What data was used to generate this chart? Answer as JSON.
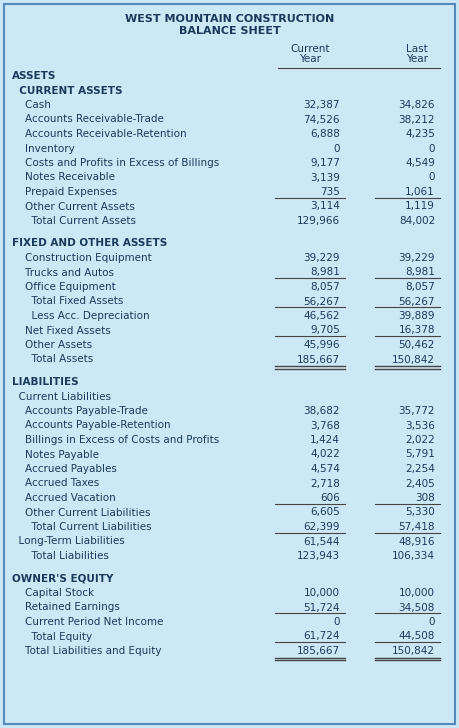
{
  "title1": "WEST MOUNTAIN CONSTRUCTION",
  "title2": "BALANCE SHEET",
  "bg_color": "#cce8f4",
  "border_color": "#5588bb",
  "text_color": "#1a3a5c",
  "line_color": "#444444",
  "fig_width": 4.59,
  "fig_height": 7.28,
  "dpi": 100,
  "rows": [
    {
      "label": "ASSETS",
      "cur": "",
      "last": "",
      "indent": 0,
      "bold": true,
      "ul_before": false,
      "dbl_after": false,
      "gap_before": false
    },
    {
      "label": "  CURRENT ASSETS",
      "cur": "",
      "last": "",
      "indent": 1,
      "bold": true,
      "ul_before": false,
      "dbl_after": false,
      "gap_before": false
    },
    {
      "label": "    Cash",
      "cur": "32,387",
      "last": "34,826",
      "indent": 2,
      "bold": false,
      "ul_before": false,
      "dbl_after": false,
      "gap_before": false
    },
    {
      "label": "    Accounts Receivable-Trade",
      "cur": "74,526",
      "last": "38,212",
      "indent": 2,
      "bold": false,
      "ul_before": false,
      "dbl_after": false,
      "gap_before": false
    },
    {
      "label": "    Accounts Receivable-Retention",
      "cur": "6,888",
      "last": "4,235",
      "indent": 2,
      "bold": false,
      "ul_before": false,
      "dbl_after": false,
      "gap_before": false
    },
    {
      "label": "    Inventory",
      "cur": "0",
      "last": "0",
      "indent": 2,
      "bold": false,
      "ul_before": false,
      "dbl_after": false,
      "gap_before": false
    },
    {
      "label": "    Costs and Profits in Excess of Billings",
      "cur": "9,177",
      "last": "4,549",
      "indent": 2,
      "bold": false,
      "ul_before": false,
      "dbl_after": false,
      "gap_before": false
    },
    {
      "label": "    Notes Receivable",
      "cur": "3,139",
      "last": "0",
      "indent": 2,
      "bold": false,
      "ul_before": false,
      "dbl_after": false,
      "gap_before": false
    },
    {
      "label": "    Prepaid Expenses",
      "cur": "735",
      "last": "1,061",
      "indent": 2,
      "bold": false,
      "ul_before": false,
      "dbl_after": false,
      "gap_before": false
    },
    {
      "label": "    Other Current Assets",
      "cur": "3,114",
      "last": "1,119",
      "indent": 2,
      "bold": false,
      "ul_before": true,
      "dbl_after": false,
      "gap_before": false
    },
    {
      "label": "      Total Current Assets",
      "cur": "129,966",
      "last": "84,002",
      "indent": 3,
      "bold": false,
      "ul_before": false,
      "dbl_after": false,
      "gap_before": false
    },
    {
      "label": "FIXED AND OTHER ASSETS",
      "cur": "",
      "last": "",
      "indent": 0,
      "bold": true,
      "ul_before": false,
      "dbl_after": false,
      "gap_before": true
    },
    {
      "label": "    Construction Equipment",
      "cur": "39,229",
      "last": "39,229",
      "indent": 2,
      "bold": false,
      "ul_before": false,
      "dbl_after": false,
      "gap_before": false
    },
    {
      "label": "    Trucks and Autos",
      "cur": "8,981",
      "last": "8,981",
      "indent": 2,
      "bold": false,
      "ul_before": false,
      "dbl_after": false,
      "gap_before": false
    },
    {
      "label": "    Office Equipment",
      "cur": "8,057",
      "last": "8,057",
      "indent": 2,
      "bold": false,
      "ul_before": true,
      "dbl_after": false,
      "gap_before": false
    },
    {
      "label": "      Total Fixed Assets",
      "cur": "56,267",
      "last": "56,267",
      "indent": 3,
      "bold": false,
      "ul_before": false,
      "dbl_after": false,
      "gap_before": false
    },
    {
      "label": "      Less Acc. Depreciation",
      "cur": "46,562",
      "last": "39,889",
      "indent": 3,
      "bold": false,
      "ul_before": true,
      "dbl_after": false,
      "gap_before": false
    },
    {
      "label": "    Net Fixed Assets",
      "cur": "9,705",
      "last": "16,378",
      "indent": 2,
      "bold": false,
      "ul_before": false,
      "dbl_after": false,
      "gap_before": false
    },
    {
      "label": "    Other Assets",
      "cur": "45,996",
      "last": "50,462",
      "indent": 2,
      "bold": false,
      "ul_before": true,
      "dbl_after": false,
      "gap_before": false
    },
    {
      "label": "      Total Assets",
      "cur": "185,667",
      "last": "150,842",
      "indent": 3,
      "bold": false,
      "ul_before": false,
      "dbl_after": true,
      "gap_before": false
    },
    {
      "label": "LIABILITIES",
      "cur": "",
      "last": "",
      "indent": 0,
      "bold": true,
      "ul_before": false,
      "dbl_after": false,
      "gap_before": true
    },
    {
      "label": "  Current Liabilities",
      "cur": "",
      "last": "",
      "indent": 1,
      "bold": false,
      "ul_before": false,
      "dbl_after": false,
      "gap_before": false
    },
    {
      "label": "    Accounts Payable-Trade",
      "cur": "38,682",
      "last": "35,772",
      "indent": 2,
      "bold": false,
      "ul_before": false,
      "dbl_after": false,
      "gap_before": false
    },
    {
      "label": "    Accounts Payable-Retention",
      "cur": "3,768",
      "last": "3,536",
      "indent": 2,
      "bold": false,
      "ul_before": false,
      "dbl_after": false,
      "gap_before": false
    },
    {
      "label": "    Billings in Excess of Costs and Profits",
      "cur": "1,424",
      "last": "2,022",
      "indent": 2,
      "bold": false,
      "ul_before": false,
      "dbl_after": false,
      "gap_before": false
    },
    {
      "label": "    Notes Payable",
      "cur": "4,022",
      "last": "5,791",
      "indent": 2,
      "bold": false,
      "ul_before": false,
      "dbl_after": false,
      "gap_before": false
    },
    {
      "label": "    Accrued Payables",
      "cur": "4,574",
      "last": "2,254",
      "indent": 2,
      "bold": false,
      "ul_before": false,
      "dbl_after": false,
      "gap_before": false
    },
    {
      "label": "    Accrued Taxes",
      "cur": "2,718",
      "last": "2,405",
      "indent": 2,
      "bold": false,
      "ul_before": false,
      "dbl_after": false,
      "gap_before": false
    },
    {
      "label": "    Accrued Vacation",
      "cur": "606",
      "last": "308",
      "indent": 2,
      "bold": false,
      "ul_before": false,
      "dbl_after": false,
      "gap_before": false
    },
    {
      "label": "    Other Current Liabilities",
      "cur": "6,605",
      "last": "5,330",
      "indent": 2,
      "bold": false,
      "ul_before": true,
      "dbl_after": false,
      "gap_before": false
    },
    {
      "label": "      Total Current Liabilities",
      "cur": "62,399",
      "last": "57,418",
      "indent": 3,
      "bold": false,
      "ul_before": false,
      "dbl_after": false,
      "gap_before": false
    },
    {
      "label": "  Long-Term Liabilities",
      "cur": "61,544",
      "last": "48,916",
      "indent": 1,
      "bold": false,
      "ul_before": true,
      "dbl_after": false,
      "gap_before": false
    },
    {
      "label": "      Total Liabilities",
      "cur": "123,943",
      "last": "106,334",
      "indent": 3,
      "bold": false,
      "ul_before": false,
      "dbl_after": false,
      "gap_before": false
    },
    {
      "label": "OWNER'S EQUITY",
      "cur": "",
      "last": "",
      "indent": 0,
      "bold": true,
      "ul_before": false,
      "dbl_after": false,
      "gap_before": true
    },
    {
      "label": "    Capital Stock",
      "cur": "10,000",
      "last": "10,000",
      "indent": 2,
      "bold": false,
      "ul_before": false,
      "dbl_after": false,
      "gap_before": false
    },
    {
      "label": "    Retained Earnings",
      "cur": "51,724",
      "last": "34,508",
      "indent": 2,
      "bold": false,
      "ul_before": false,
      "dbl_after": false,
      "gap_before": false
    },
    {
      "label": "    Current Period Net Income",
      "cur": "0",
      "last": "0",
      "indent": 2,
      "bold": false,
      "ul_before": true,
      "dbl_after": false,
      "gap_before": false
    },
    {
      "label": "      Total Equity",
      "cur": "61,724",
      "last": "44,508",
      "indent": 3,
      "bold": false,
      "ul_before": false,
      "dbl_after": false,
      "gap_before": false
    },
    {
      "label": "    Total Liabilities and Equity",
      "cur": "185,667",
      "last": "150,842",
      "indent": 2,
      "bold": false,
      "ul_before": true,
      "dbl_after": true,
      "gap_before": false
    }
  ]
}
